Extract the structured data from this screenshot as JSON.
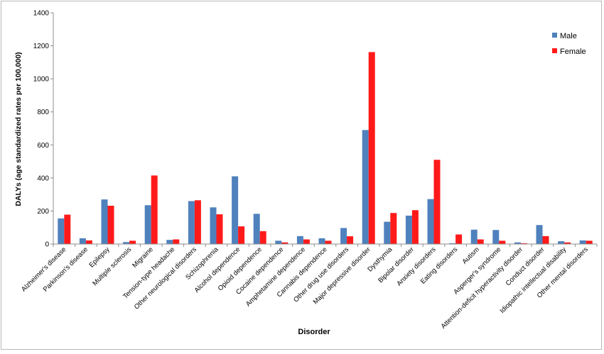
{
  "chart_data": {
    "type": "bar",
    "title": "",
    "xlabel": "Disorder",
    "ylabel": "DALYs (age standardized rates per 100,000)",
    "ylim": [
      0,
      1400
    ],
    "yticks": [
      0,
      200,
      400,
      600,
      800,
      1000,
      1200,
      1400
    ],
    "grid": false,
    "legend_position": "top-right",
    "categories": [
      "Alzheimer's disease",
      "Parkinson's disease",
      "Epilepsy",
      "Multiple sclerosis",
      "Migraine",
      "Tension-type headache",
      "Other neurological disorders",
      "Schizophrenia",
      "Alcohol dependence",
      "Opioid dependence",
      "Cocaine dependence",
      "Amphetamine dependence",
      "Cannabis dependence",
      "Other drug use disorders",
      "Major depressive disorder",
      "Dysthymia",
      "Bipolar disorder",
      "Anxiety disorders",
      "Eating disorders",
      "Autism",
      "Asperger's syndrome",
      "Attention-deficit hyperactivity disorder",
      "Conduct disorder",
      "Idiopathic intellectual disability",
      "Other mental disorders"
    ],
    "series": [
      {
        "name": "Male",
        "color": "#4f81bd",
        "values": [
          155,
          35,
          270,
          12,
          235,
          25,
          260,
          222,
          410,
          183,
          20,
          48,
          35,
          97,
          690,
          135,
          172,
          272,
          5,
          87,
          85,
          10,
          115,
          17,
          22
        ]
      },
      {
        "name": "Female",
        "color": "#ff1a1a",
        "values": [
          178,
          22,
          232,
          20,
          415,
          28,
          265,
          180,
          107,
          78,
          10,
          28,
          20,
          47,
          1162,
          188,
          205,
          510,
          58,
          28,
          20,
          5,
          48,
          10,
          20
        ]
      }
    ]
  }
}
